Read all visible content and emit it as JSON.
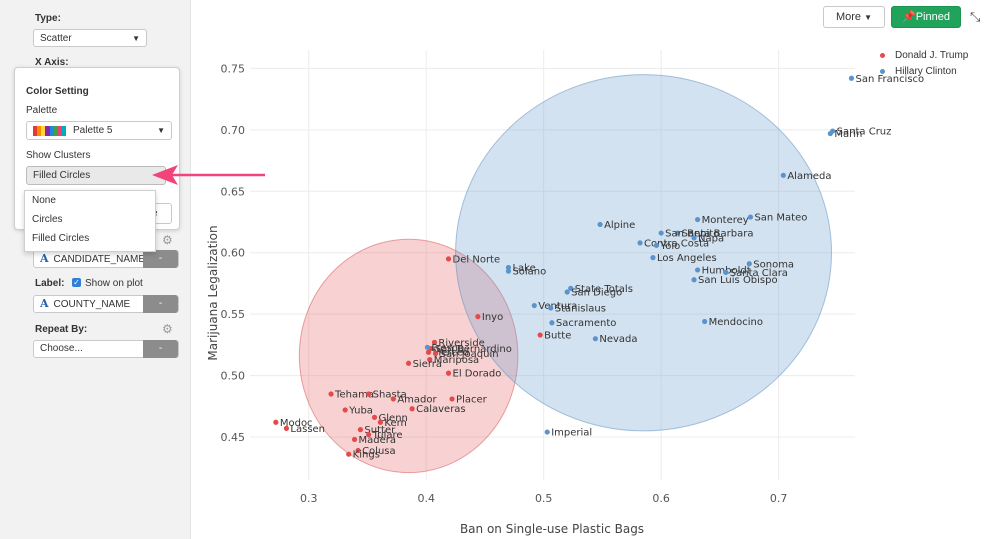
{
  "sidebar": {
    "type_label": "Type:",
    "type_value": "Scatter",
    "xaxis_label": "X Axis:",
    "color_field": "CANDIDATE_NAME",
    "label_label": "Label:",
    "show_on_plot": "Show on plot",
    "label_field": "COUNTY_NAME",
    "repeat_label": "Repeat By:",
    "repeat_value": "Choose...",
    "minus": "-"
  },
  "color_setting": {
    "title": "Color Setting",
    "palette_label": "Palette",
    "palette_value": "Palette 5",
    "palette_colors": [
      "#e53935",
      "#fb8c00",
      "#fdd835",
      "#8e24aa",
      "#1e88e5",
      "#43a047",
      "#ec407a",
      "#00acc1"
    ],
    "show_clusters_label": "Show Clusters",
    "show_clusters_value": "Filled Circles",
    "options": [
      "None",
      "Circles",
      "Filled Circles"
    ],
    "hidden_button_text": "se"
  },
  "toolbar": {
    "more_label": "More",
    "pinned_label": "Pinned",
    "accent": "#20a35a",
    "arrow_color": "#f2447a"
  },
  "legend": [
    {
      "name": "Donald J. Trump",
      "color": "#e34a4a"
    },
    {
      "name": "Hillary Clinton",
      "color": "#5b94cc"
    }
  ],
  "chart_data": {
    "type": "scatter",
    "xlabel": "Ban on Single-use Plastic Bags",
    "ylabel": "Marijuana Legalization",
    "xlim": [
      0.25,
      0.765
    ],
    "ylim": [
      0.415,
      0.765
    ],
    "xticks": [
      0.3,
      0.4,
      0.5,
      0.6,
      0.7
    ],
    "yticks": [
      0.45,
      0.5,
      0.55,
      0.6,
      0.65,
      0.7,
      0.75
    ],
    "clusters": [
      {
        "series": "Donald J. Trump",
        "cx": 0.385,
        "cy": 0.516,
        "rx": 0.093,
        "ry": 0.095,
        "fill": "rgba(229,92,92,0.28)",
        "stroke": "rgba(215,80,80,0.5)"
      },
      {
        "series": "Hillary Clinton",
        "cx": 0.585,
        "cy": 0.6,
        "rx": 0.16,
        "ry": 0.145,
        "fill": "rgba(110,160,205,0.30)",
        "stroke": "rgba(90,140,190,0.5)"
      }
    ],
    "series": [
      {
        "name": "Donald J. Trump",
        "color": "#e34a4a",
        "points": [
          {
            "label": "Modoc",
            "x": 0.272,
            "y": 0.462
          },
          {
            "label": "Lassen",
            "x": 0.281,
            "y": 0.457
          },
          {
            "label": "Tehama",
            "x": 0.319,
            "y": 0.485
          },
          {
            "label": "Shasta",
            "x": 0.351,
            "y": 0.485
          },
          {
            "label": "Yuba",
            "x": 0.331,
            "y": 0.472
          },
          {
            "label": "Amador",
            "x": 0.372,
            "y": 0.481
          },
          {
            "label": "Calaveras",
            "x": 0.388,
            "y": 0.473
          },
          {
            "label": "Placer",
            "x": 0.422,
            "y": 0.481
          },
          {
            "label": "Glenn",
            "x": 0.356,
            "y": 0.466
          },
          {
            "label": "Kern",
            "x": 0.361,
            "y": 0.462
          },
          {
            "label": "Sutter",
            "x": 0.344,
            "y": 0.456
          },
          {
            "label": "Tulare",
            "x": 0.351,
            "y": 0.452
          },
          {
            "label": "Madera",
            "x": 0.339,
            "y": 0.448
          },
          {
            "label": "Colusa",
            "x": 0.342,
            "y": 0.439
          },
          {
            "label": "Kings",
            "x": 0.334,
            "y": 0.436
          },
          {
            "label": "Del Norte",
            "x": 0.419,
            "y": 0.595
          },
          {
            "label": "Inyo",
            "x": 0.444,
            "y": 0.548
          },
          {
            "label": "Butte",
            "x": 0.497,
            "y": 0.533
          },
          {
            "label": "Riverside",
            "x": 0.407,
            "y": 0.527
          },
          {
            "label": "San Bernardino",
            "x": 0.404,
            "y": 0.522
          },
          {
            "label": "Merced",
            "x": 0.402,
            "y": 0.519
          },
          {
            "label": "San Joaquin",
            "x": 0.408,
            "y": 0.518
          },
          {
            "label": "Mariposa",
            "x": 0.403,
            "y": 0.513
          },
          {
            "label": "Sierra",
            "x": 0.385,
            "y": 0.51
          },
          {
            "label": "El Dorado",
            "x": 0.419,
            "y": 0.502
          }
        ]
      },
      {
        "name": "Hillary Clinton",
        "color": "#5b94cc",
        "points": [
          {
            "label": "San Francisco",
            "x": 0.762,
            "y": 0.742
          },
          {
            "label": "Santa Cruz",
            "x": 0.746,
            "y": 0.699
          },
          {
            "label": "Marin",
            "x": 0.744,
            "y": 0.697
          },
          {
            "label": "Alameda",
            "x": 0.704,
            "y": 0.663
          },
          {
            "label": "San Mateo",
            "x": 0.676,
            "y": 0.629
          },
          {
            "label": "Monterey",
            "x": 0.631,
            "y": 0.627
          },
          {
            "label": "Alpine",
            "x": 0.548,
            "y": 0.623
          },
          {
            "label": "Santa Barbara",
            "x": 0.614,
            "y": 0.616
          },
          {
            "label": "San Benito",
            "x": 0.6,
            "y": 0.616
          },
          {
            "label": "Napa",
            "x": 0.628,
            "y": 0.612
          },
          {
            "label": "Contra Costa",
            "x": 0.582,
            "y": 0.608
          },
          {
            "label": "Yolo",
            "x": 0.596,
            "y": 0.606
          },
          {
            "label": "Los Angeles",
            "x": 0.593,
            "y": 0.596
          },
          {
            "label": "Sonoma",
            "x": 0.675,
            "y": 0.591
          },
          {
            "label": "Humboldt",
            "x": 0.631,
            "y": 0.586
          },
          {
            "label": "Santa Clara",
            "x": 0.655,
            "y": 0.584
          },
          {
            "label": "Lake",
            "x": 0.47,
            "y": 0.588
          },
          {
            "label": "Solano",
            "x": 0.47,
            "y": 0.585
          },
          {
            "label": "San Luis Obispo",
            "x": 0.628,
            "y": 0.578
          },
          {
            "label": "State Totals",
            "x": 0.523,
            "y": 0.571
          },
          {
            "label": "San Diego",
            "x": 0.52,
            "y": 0.568
          },
          {
            "label": "Ventura",
            "x": 0.492,
            "y": 0.557
          },
          {
            "label": "Stanislaus",
            "x": 0.506,
            "y": 0.555
          },
          {
            "label": "Mendocino",
            "x": 0.637,
            "y": 0.544
          },
          {
            "label": "Sacramento",
            "x": 0.507,
            "y": 0.543
          },
          {
            "label": "Nevada",
            "x": 0.544,
            "y": 0.53
          },
          {
            "label": "Fresno",
            "x": 0.401,
            "y": 0.523
          },
          {
            "label": "Imperial",
            "x": 0.503,
            "y": 0.454
          }
        ]
      }
    ]
  }
}
